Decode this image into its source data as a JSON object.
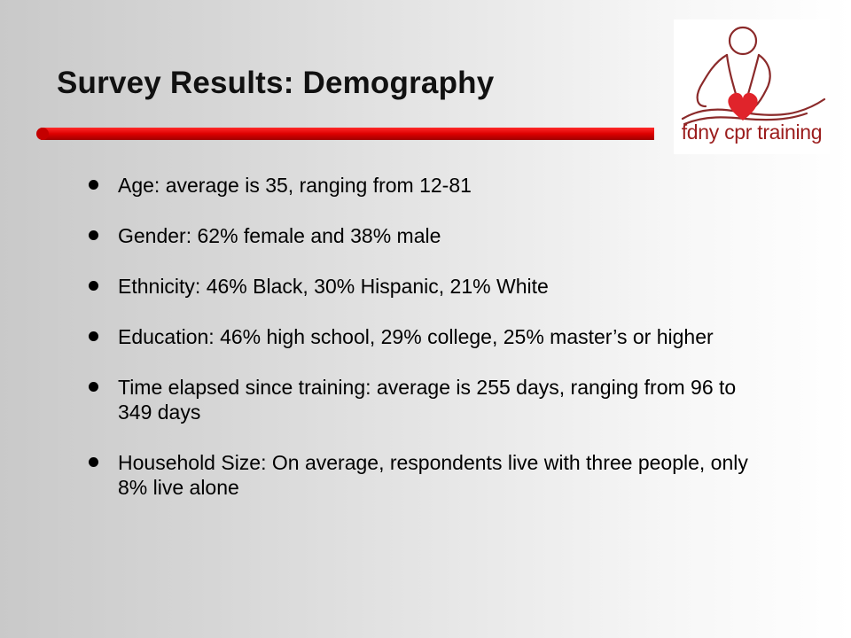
{
  "slide": {
    "title": "Survey Results: Demography",
    "logo": {
      "text": "fdny cpr training",
      "icon": "cpr-figure-heart-icon",
      "colors": {
        "outline": "#8b2a2a",
        "heart": "#e0242b"
      }
    },
    "accent_color": "#cc0000",
    "bullets": [
      {
        "text": "Age: average is 35, ranging from 12-81"
      },
      {
        "text": "Gender: 62% female and 38% male"
      },
      {
        "text": "Ethnicity: 46% Black, 30% Hispanic, 21% White"
      },
      {
        "text": "Education: 46% high school, 29% college, 25% master’s or higher"
      },
      {
        "text": "Time elapsed since training: average is 255 days, ranging from 96 to 349 days"
      },
      {
        "text": "Household Size: On average, respondents live with three people, only 8% live alone"
      }
    ]
  }
}
